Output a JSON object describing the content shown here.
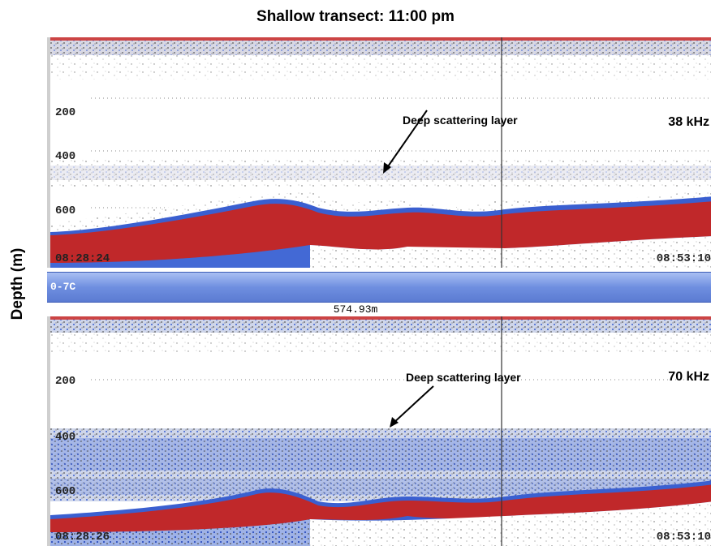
{
  "title": "Shallow transect:  11:00 pm",
  "y_axis_label": "Depth (m)",
  "panels": [
    {
      "frequency": "38 kHz",
      "annotation": "Deep scattering layer",
      "depth_labels": [
        "200",
        "400",
        "600"
      ],
      "time_start": "08:28:24",
      "time_end": "08:53:10"
    },
    {
      "frequency": "70 kHz",
      "annotation": "Deep scattering layer",
      "depth_labels": [
        "200",
        "400",
        "600"
      ],
      "time_start": "08:28:26",
      "time_end": "08:53:10"
    }
  ],
  "divider_bar_label": "0-7C",
  "range_readout": "574.93m",
  "colors": {
    "seabed_red": "#c0282a",
    "scatter_blue": "#3a5fd0",
    "divider_blue": "#6f8fe0"
  }
}
